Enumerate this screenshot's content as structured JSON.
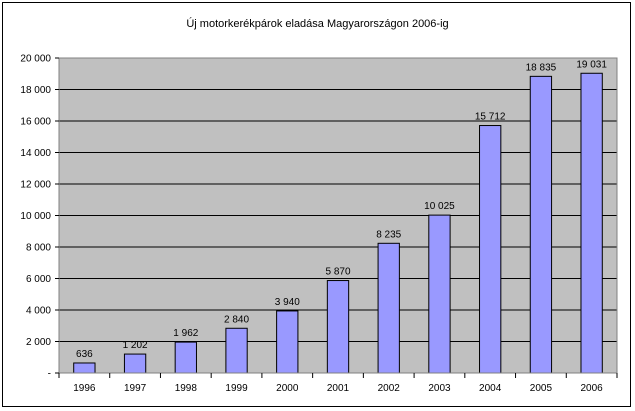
{
  "chart_data": {
    "type": "bar",
    "title": "Új motorkerékpárok eladása Magyarországon 2006-ig",
    "xlabel": "",
    "ylabel": "",
    "categories": [
      "1996",
      "1997",
      "1998",
      "1999",
      "2000",
      "2001",
      "2002",
      "2003",
      "2004",
      "2005",
      "2006"
    ],
    "values": [
      636,
      1202,
      1962,
      2840,
      3940,
      5870,
      8235,
      10025,
      15712,
      18835,
      19031
    ],
    "data_labels": [
      "636",
      "1 202",
      "1 962",
      "2 840",
      "3 940",
      "5 870",
      "8 235",
      "10 025",
      "15 712",
      "18 835",
      "19 031"
    ],
    "ylim": [
      0,
      20000
    ],
    "yticks": [
      0,
      2000,
      4000,
      6000,
      8000,
      10000,
      12000,
      14000,
      16000,
      18000,
      20000
    ],
    "ytick_labels": [
      "-",
      "2 000",
      "4 000",
      "6 000",
      "8 000",
      "10 000",
      "12 000",
      "14 000",
      "16 000",
      "18 000",
      "20 000"
    ],
    "grid": true,
    "legend": "none",
    "colors": {
      "plot_background": "#c0c0c0",
      "bar_fill": "#9999ff",
      "bar_stroke": "#000000",
      "gridline": "#000000"
    }
  }
}
